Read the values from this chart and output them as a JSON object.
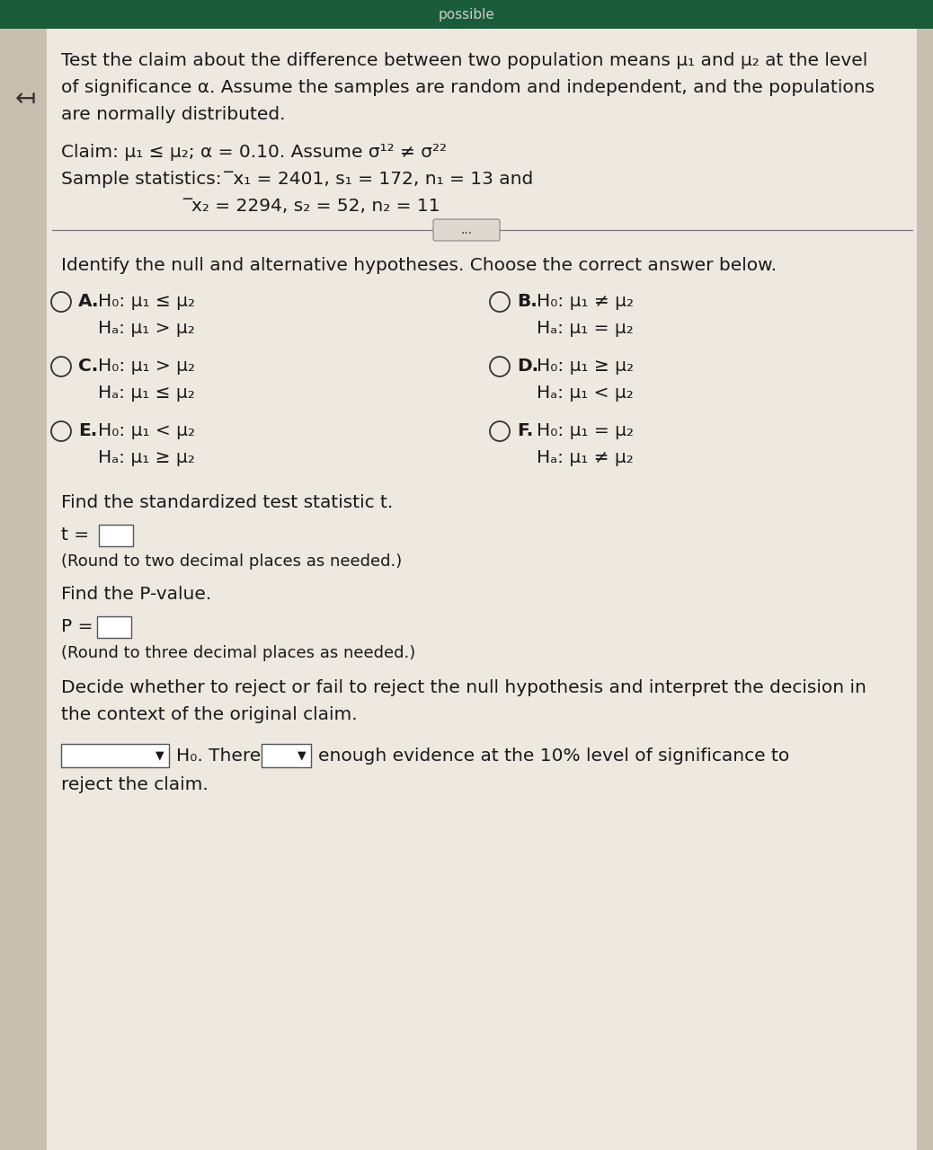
{
  "header_color": "#1a5c3a",
  "bg_color": "#d8d0c0",
  "content_bg": "#ede8e0",
  "white_box": "#f0ece4",
  "text_color": "#1a1a1a",
  "line_color": "#555555",
  "box_color": "#ffffff",
  "box_edge": "#555555",
  "header_text": "possible",
  "header_text_color": "#cccccc",
  "title_lines": [
    "Test the claim about the difference between two population means μ₁ and μ₂ at the level",
    "of significance α. Assume the samples are random and independent, and the populations",
    "are normally distributed."
  ],
  "claim_line": "Claim: μ₁ ≤ μ₂; α = 0.10. Assume σ¹² ≠ σ²²",
  "sample_line1": "Sample statistics:  ̅x₁ = 2401, s₁ = 172, n₁ = 13 and",
  "sample_line2": "̅x₂ = 2294, s₂ = 52, n₂ = 11",
  "identify_text": "Identify the null and alternative hypotheses. Choose the correct answer below.",
  "options": [
    {
      "label": "A.",
      "H0": "H₀: μ₁ ≤ μ₂",
      "Ha": "Hₐ: μ₁ > μ₂"
    },
    {
      "label": "B.",
      "H0": "H₀: μ₁ ≠ μ₂",
      "Ha": "Hₐ: μ₁ = μ₂"
    },
    {
      "label": "C.",
      "H0": "H₀: μ₁ > μ₂",
      "Ha": "Hₐ: μ₁ ≤ μ₂"
    },
    {
      "label": "D.",
      "H0": "H₀: μ₁ ≥ μ₂",
      "Ha": "Hₐ: μ₁ < μ₂"
    },
    {
      "label": "E.",
      "H0": "H₀: μ₁ < μ₂",
      "Ha": "Hₐ: μ₁ ≥ μ₂"
    },
    {
      "label": "F.",
      "H0": "H₀: μ₁ = μ₂",
      "Ha": "Hₐ: μ₁ ≠ μ₂"
    }
  ],
  "find_t": "Find the standardized test statistic t.",
  "t_eq": "t =",
  "round_t": "(Round to two decimal places as needed.)",
  "find_p": "Find the P-value.",
  "p_eq": "P =",
  "round_p": "(Round to three decimal places as needed.)",
  "decide1": "Decide whether to reject or fail to reject the null hypothesis and interpret the decision in",
  "decide2": "the context of the original claim.",
  "bottom_mid": "H₀. There",
  "bottom_end": "enough evidence at the 10% level of significance to",
  "bottom_last": "reject the claim.",
  "fs_body": 14.5,
  "fs_small": 13.0
}
